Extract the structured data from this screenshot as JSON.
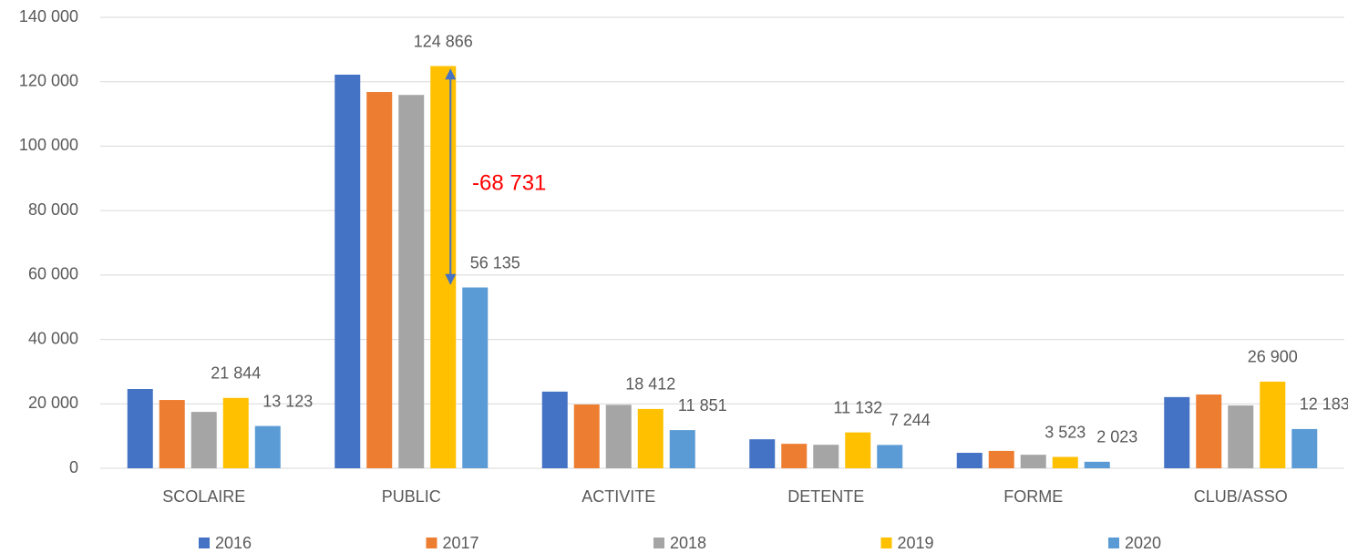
{
  "chart_data": {
    "type": "bar",
    "categories": [
      "SCOLAIRE",
      "PUBLIC",
      "ACTIVITE",
      "DETENTE",
      "FORME",
      "CLUB/ASSO"
    ],
    "series": [
      {
        "name": "2016",
        "color": "#4472c4",
        "values": [
          24600,
          122200,
          23800,
          9000,
          4800,
          22100
        ]
      },
      {
        "name": "2017",
        "color": "#ed7d31",
        "values": [
          21200,
          116800,
          19800,
          7600,
          5400,
          22900
        ]
      },
      {
        "name": "2018",
        "color": "#a5a5a5",
        "values": [
          17500,
          115900,
          19700,
          7300,
          4200,
          19500
        ]
      },
      {
        "name": "2019",
        "color": "#ffc000",
        "values": [
          21844,
          124866,
          18412,
          11132,
          3523,
          26900
        ],
        "value_labels": [
          "21 844",
          "124 866",
          "18 412",
          "11 132",
          "3 523",
          "26 900"
        ]
      },
      {
        "name": "2020",
        "color": "#5b9bd5",
        "values": [
          13123,
          56135,
          11851,
          7244,
          2023,
          12183
        ],
        "value_labels": [
          "13 123",
          "56 135",
          "11 851",
          "7 244",
          "2 023",
          "12 183"
        ]
      }
    ],
    "annotations": [
      {
        "text": "-68 731",
        "color": "#ff0000"
      }
    ],
    "ylim": [
      0,
      140000
    ],
    "yticks": [
      0,
      {
        "value": 20000,
        "label": "20 000"
      },
      {
        "value": 40000,
        "label": "40 000"
      },
      {
        "value": 60000,
        "label": "60 000"
      },
      {
        "value": 80000,
        "label": "80 000"
      },
      {
        "value": 100000,
        "label": "100 000"
      },
      {
        "value": 120000,
        "label": "120 000"
      },
      {
        "value": 140000,
        "label": "140 000"
      }
    ],
    "grid": true,
    "legend": "bottom"
  }
}
